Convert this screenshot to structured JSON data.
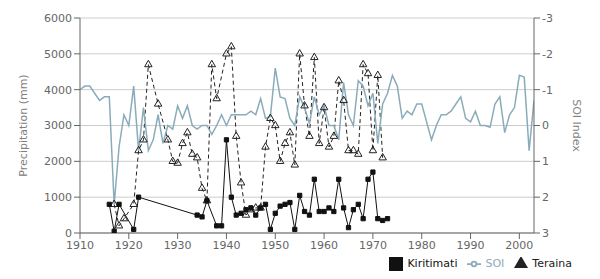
{
  "chart_data": {
    "type": "line",
    "xlim": [
      1910,
      2003
    ],
    "xticks": [
      1910,
      1920,
      1930,
      1940,
      1950,
      1960,
      1970,
      1980,
      1990,
      2000
    ],
    "ylim": [
      0,
      6000
    ],
    "yticks": [
      0,
      1000,
      2000,
      3000,
      4000,
      5000,
      6000
    ],
    "y2lim": [
      3,
      -3
    ],
    "y2ticks": [
      -3,
      -2,
      -1,
      0,
      1,
      2,
      3
    ],
    "ylabel": "Precipitation (mm)",
    "y2label": "SOI Index",
    "grid": true,
    "legend": "lower right",
    "series": [
      {
        "name": "Teraina",
        "color": "#222222",
        "line_style": "dashed",
        "marker": "triangle",
        "x": [
          1917,
          1918,
          1919,
          1921,
          1922,
          1923,
          1924,
          1926,
          1928,
          1929,
          1930,
          1931,
          1932,
          1933,
          1934,
          1935,
          1936,
          1937,
          1938,
          1940,
          1941,
          1942,
          1943,
          1944,
          1945,
          1946,
          1947,
          1948,
          1949,
          1950,
          1951,
          1952,
          1953,
          1954,
          1955,
          1956,
          1957,
          1958,
          1959,
          1960,
          1961,
          1962,
          1963,
          1964,
          1965,
          1966,
          1967,
          1968,
          1969,
          1970,
          1971,
          1972
        ],
        "values": [
          800,
          200,
          400,
          800,
          2300,
          2600,
          4700,
          3600,
          2600,
          2000,
          1950,
          2500,
          2800,
          2200,
          2100,
          1250,
          900,
          4700,
          3750,
          5000,
          5200,
          2700,
          1400,
          500,
          650,
          700,
          700,
          2400,
          3200,
          3000,
          2000,
          2500,
          2800,
          1900,
          5000,
          3550,
          2700,
          4900,
          2500,
          3500,
          2400,
          2700,
          4250,
          3700,
          2300,
          2300,
          2200,
          4700,
          4450,
          2300,
          4400,
          2100
        ]
      },
      {
        "name": "Kiritimati",
        "color": "#111111",
        "line_style": "solid",
        "marker": "square",
        "x": [
          1916,
          1917,
          1918,
          1921,
          1922,
          1934,
          1935,
          1936,
          1938,
          1939,
          1940,
          1941,
          1942,
          1943,
          1944,
          1945,
          1946,
          1947,
          1948,
          1949,
          1950,
          1951,
          1952,
          1953,
          1954,
          1955,
          1956,
          1957,
          1958,
          1959,
          1960,
          1961,
          1962,
          1963,
          1964,
          1965,
          1966,
          1967,
          1968,
          1969,
          1970,
          1971,
          1972,
          1973
        ],
        "values": [
          800,
          50,
          800,
          100,
          1000,
          500,
          450,
          900,
          200,
          200,
          2600,
          1000,
          500,
          550,
          650,
          700,
          500,
          700,
          800,
          100,
          550,
          750,
          800,
          850,
          100,
          1050,
          600,
          500,
          1500,
          600,
          600,
          700,
          600,
          1500,
          700,
          150,
          650,
          800,
          400,
          1500,
          1700,
          400,
          350,
          400
        ]
      },
      {
        "name": "SOI",
        "color": "#8aacba",
        "line_style": "solid",
        "axis": "y2",
        "x": [
          1910,
          1911,
          1912,
          1913,
          1914,
          1915,
          1916,
          1917,
          1918,
          1919,
          1920,
          1921,
          1922,
          1923,
          1924,
          1925,
          1926,
          1927,
          1928,
          1929,
          1930,
          1931,
          1932,
          1933,
          1934,
          1935,
          1936,
          1937,
          1938,
          1939,
          1940,
          1941,
          1942,
          1943,
          1944,
          1945,
          1946,
          1947,
          1948,
          1949,
          1950,
          1951,
          1952,
          1953,
          1954,
          1955,
          1956,
          1957,
          1958,
          1959,
          1960,
          1961,
          1962,
          1963,
          1964,
          1965,
          1966,
          1967,
          1968,
          1969,
          1970,
          1971,
          1972,
          1973,
          1974,
          1975,
          1976,
          1977,
          1978,
          1979,
          1980,
          1981,
          1982,
          1983,
          1984,
          1985,
          1986,
          1987,
          1988,
          1989,
          1990,
          1991,
          1992,
          1993,
          1994,
          1995,
          1996,
          1997,
          1998,
          1999,
          2000,
          2001,
          2002,
          2003
        ],
        "values": [
          -1.0,
          -1.1,
          -1.1,
          -0.9,
          -0.7,
          -0.8,
          -0.8,
          2.2,
          0.6,
          -0.3,
          0.0,
          -1.1,
          0.7,
          -0.5,
          0.7,
          0.4,
          -0.3,
          0.5,
          0.0,
          0.1,
          -0.55,
          -0.2,
          -0.55,
          0.0,
          0.1,
          0.0,
          0.0,
          0.25,
          0.0,
          -0.3,
          0.0,
          -0.3,
          -0.3,
          -0.3,
          -0.3,
          -0.4,
          -0.3,
          -0.75,
          -0.2,
          -0.25,
          -1.6,
          -0.8,
          -0.75,
          -0.2,
          0.0,
          -0.8,
          -0.5,
          -0.05,
          -0.8,
          -0.3,
          -0.55,
          0.0,
          0.0,
          0.4,
          -1.2,
          -0.3,
          0.0,
          -1.25,
          -1.1,
          -0.55,
          -0.9,
          0.5,
          -0.6,
          -0.9,
          -1.4,
          -1.1,
          -0.2,
          -0.4,
          -0.3,
          -0.6,
          -0.6,
          -0.1,
          0.4,
          0.0,
          -0.3,
          -0.3,
          -0.4,
          -0.6,
          -0.8,
          -0.2,
          -0.1,
          -0.4,
          0.0,
          0.0,
          0.05,
          -0.6,
          -0.8,
          0.2,
          -0.3,
          -0.5,
          -1.4,
          -1.35,
          0.7,
          -0.7
        ]
      }
    ]
  }
}
